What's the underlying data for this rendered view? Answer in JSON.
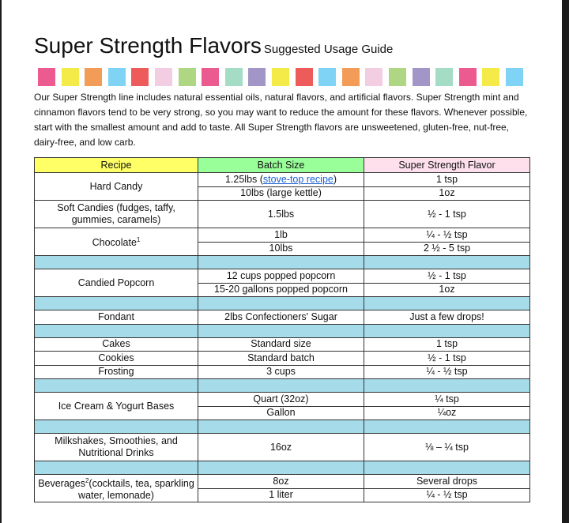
{
  "title": {
    "main": "Super Strength Flavors",
    "sub": "Suggested Usage Guide"
  },
  "swatch_colors": [
    "#ec5b8f",
    "#f4ea48",
    "#f29c58",
    "#7fd3f5",
    "#ee5b5b",
    "#f3cde2",
    "#aed683",
    "#ec5b8f",
    "#a4dcc6",
    "#a296c9",
    "#f4ea48",
    "#ee5b5b",
    "#7fd3f5",
    "#f29c58",
    "#f3cde2",
    "#aed683",
    "#a296c9",
    "#a4dcc6",
    "#ec5b8f",
    "#f4ea48",
    "#7fd3f5"
  ],
  "intro": "Our Super Strength line includes natural essential oils, natural flavors, and artificial flavors. Super Strength mint and cinnamon flavors tend to be very strong, so you may want to reduce the amount for these flavors. Whenever possible, start with the smallest amount and add to taste. All Super Strength flavors are unsweetened, gluten-free, nut-free, dairy-free, and low carb.",
  "colors": {
    "recipe_header": "#ffff66",
    "batch_header": "#99ff99",
    "flavor_header": "#fde0ec",
    "separator": "#a6dcea",
    "link": "#1a5fd0"
  },
  "table": {
    "headers": [
      "Recipe",
      "Batch Size",
      "Super Strength Flavor"
    ],
    "rows": {
      "hard_candy": {
        "recipe": "Hard Candy",
        "b1_pre": "1.25lbs (",
        "b1_link": "stove-top recipe",
        "b1_post": ")",
        "f1": "1 tsp",
        "b2": "10lbs (large kettle)",
        "f2": "1oz"
      },
      "soft_candies": {
        "recipe": "Soft Candies (fudges, taffy, gummies, caramels)",
        "b1": "1.5lbs",
        "f1": "½ - 1 tsp"
      },
      "chocolate": {
        "recipe": "Chocolate",
        "sup": "1",
        "b1": "1lb",
        "f1": "¼ - ½ tsp",
        "b2": "10lbs",
        "f2": "2 ½ - 5 tsp"
      },
      "popcorn": {
        "recipe": "Candied Popcorn",
        "b1": "12 cups popped popcorn",
        "f1": "½ - 1 tsp",
        "b2": "15-20 gallons popped popcorn",
        "f2": "1oz"
      },
      "fondant": {
        "recipe": "Fondant",
        "b1": "2lbs Confectioners' Sugar",
        "f1": "Just a few drops!"
      },
      "cakes": {
        "recipe": "Cakes",
        "b1": "Standard size",
        "f1": "1 tsp"
      },
      "cookies": {
        "recipe": "Cookies",
        "b1": "Standard batch",
        "f1": "½ - 1 tsp"
      },
      "frosting": {
        "recipe": "Frosting",
        "b1": "3 cups",
        "f1": "¼ - ½ tsp"
      },
      "ice_cream": {
        "recipe": "Ice Cream & Yogurt Bases",
        "b1": "Quart (32oz)",
        "f1": "¼ tsp",
        "b2": "Gallon",
        "f2": "¼oz"
      },
      "milkshakes": {
        "recipe": "Milkshakes, Smoothies, and Nutritional Drinks",
        "b1": "16oz",
        "f1": "⅛ – ¼ tsp"
      },
      "beverages": {
        "recipe_pre": "Beverages",
        "sup": "2",
        "recipe_post": "(cocktails, tea, sparkling water, lemonade)",
        "b1": "8oz",
        "f1": "Several drops",
        "b2": "1 liter",
        "f2": "¼ - ½ tsp"
      }
    }
  }
}
